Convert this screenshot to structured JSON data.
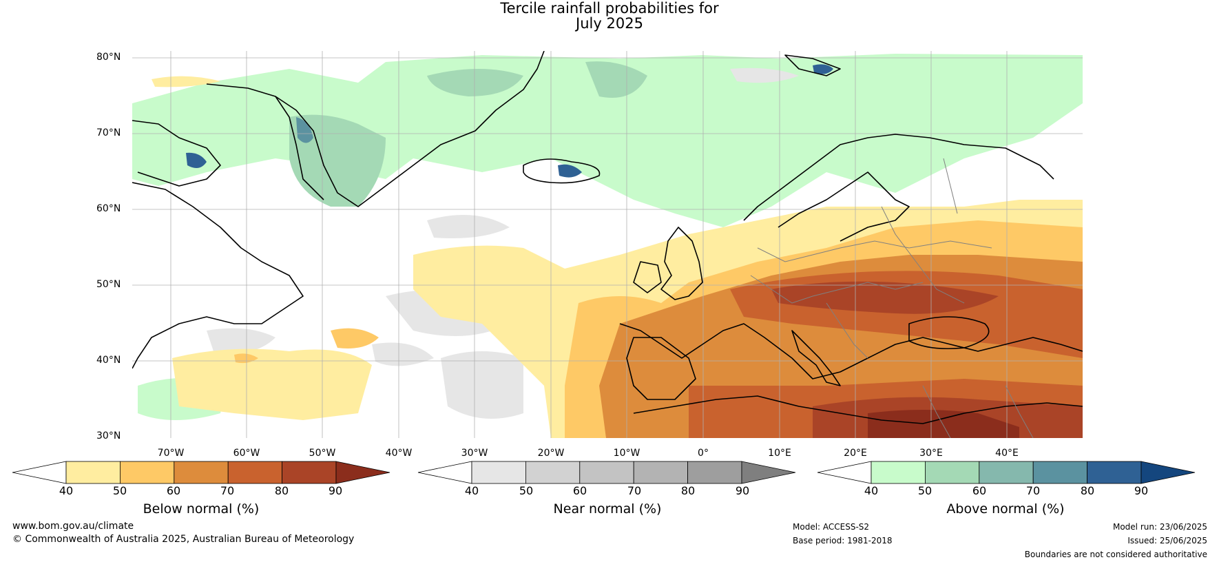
{
  "title": {
    "line1": "Tercile rainfall probabilities for",
    "line2": "July 2025"
  },
  "map": {
    "lat_labels": [
      "80°N",
      "70°N",
      "60°N",
      "50°N",
      "40°N",
      "30°N"
    ],
    "lon_labels": [
      "70°W",
      "60°W",
      "50°W",
      "40°W",
      "30°W",
      "20°W",
      "10°W",
      "0°",
      "10°E",
      "20°E",
      "30°E",
      "40°E"
    ],
    "colors": {
      "land_outline": "#000000",
      "border": "#808080",
      "grid": "#b0b0b0"
    }
  },
  "colorbars": [
    {
      "label": "Below normal (%)",
      "ticks": [
        "40",
        "50",
        "60",
        "70",
        "80",
        "90"
      ],
      "colors": [
        "#ffffff",
        "#ffeda0",
        "#fec966",
        "#dd8c3c",
        "#c9622e",
        "#aa4427",
        "#8b2d1c"
      ]
    },
    {
      "label": "Near normal (%)",
      "ticks": [
        "40",
        "50",
        "60",
        "70",
        "80",
        "90"
      ],
      "colors": [
        "#ffffff",
        "#e6e6e6",
        "#d2d2d2",
        "#c3c3c3",
        "#b3b3b3",
        "#9e9e9e",
        "#7f7f7f"
      ]
    },
    {
      "label": "Above normal (%)",
      "ticks": [
        "40",
        "50",
        "60",
        "70",
        "80",
        "90"
      ],
      "colors": [
        "#ffffff",
        "#c8fbcb",
        "#a4d9b5",
        "#85b8ad",
        "#5b92a0",
        "#2f6194",
        "#14467e"
      ]
    }
  ],
  "footer": {
    "website": "www.bom.gov.au/climate",
    "copyright": "© Commonwealth of Australia 2025, Australian Bureau of Meteorology",
    "model": "Model: ACCESS-S2",
    "base_period": "Base period: 1981-2018",
    "model_run": "Model run: 23/06/2025",
    "issued": "Issued: 25/06/2025",
    "disclaimer": "Boundaries are not considered authoritative"
  }
}
